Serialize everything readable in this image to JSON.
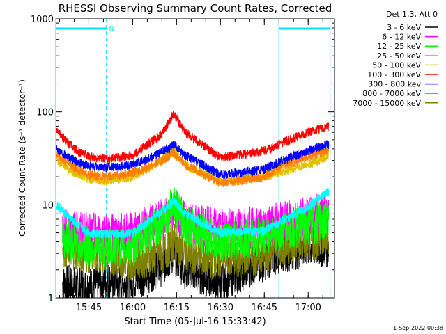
{
  "chart_data": {
    "type": "line",
    "title": "RHESSI Observing Summary Count Rates, Corrected",
    "xlabel": "Start Time (05-Jul-16 15:33:42)",
    "ylabel": "Corrected Count Rate (s⁻¹ detector⁻¹)",
    "yscale": "log",
    "ylim": [
      1,
      1000
    ],
    "xlim": [
      "15:33:42",
      "17:09:00"
    ],
    "x_tick_labels": [
      "15:45",
      "16:00",
      "16:15",
      "16:30",
      "16:45",
      "17:00"
    ],
    "y_tick_labels": [
      "1",
      "10",
      "100",
      "1000"
    ],
    "legend_header": "Det 1,3, Att 0",
    "legend_position": "right",
    "timestamp": "1-Sep-2022 00:38",
    "bars": [
      {
        "start": "15:33:42",
        "end": "15:51:00",
        "label": "N"
      },
      {
        "start": "16:50:00",
        "end": "17:07:30",
        "label": ""
      }
    ],
    "dashed_markers": [
      "15:51:00",
      "17:07:30"
    ],
    "solid_markers": [
      "15:33:42",
      "16:50:00"
    ],
    "series": [
      {
        "name": "3 - 6 keV",
        "color": "#000000",
        "times": [
          "15:36",
          "15:45",
          "15:51",
          "16:00",
          "16:10",
          "16:14",
          "16:18",
          "16:30",
          "16:45",
          "16:50",
          "17:00",
          "17:07"
        ],
        "values": [
          1.4,
          1.3,
          1.5,
          1.5,
          2.2,
          3.0,
          2.0,
          1.5,
          2.5,
          3.0,
          3.5,
          3.5
        ]
      },
      {
        "name": "6 - 12 keV",
        "color": "#ff00ff",
        "times": [
          "15:36",
          "15:45",
          "15:51",
          "16:00",
          "16:10",
          "16:14",
          "16:18",
          "16:30",
          "16:45",
          "16:50",
          "17:00",
          "17:07"
        ],
        "values": [
          5.5,
          5.0,
          5.0,
          5.0,
          7.0,
          9.5,
          6.5,
          5.5,
          6.0,
          6.5,
          7.5,
          8.5
        ]
      },
      {
        "name": "12 - 25 keV",
        "color": "#00ff00",
        "times": [
          "15:36",
          "15:45",
          "15:51",
          "16:00",
          "16:10",
          "16:14",
          "16:18",
          "16:30",
          "16:45",
          "16:50",
          "17:00",
          "17:07"
        ],
        "values": [
          4.5,
          3.5,
          3.5,
          3.5,
          6.5,
          10,
          6.0,
          4.0,
          4.5,
          5.0,
          6.0,
          7.0
        ]
      },
      {
        "name": "25 - 50 keV",
        "color": "#00ffff",
        "times": [
          "15:34",
          "15:40",
          "15:45",
          "15:51",
          "16:00",
          "16:10",
          "16:14",
          "16:18",
          "16:30",
          "16:45",
          "16:50",
          "17:00",
          "17:07"
        ],
        "values": [
          10,
          6.5,
          5.0,
          4.8,
          5.0,
          8.5,
          11,
          8.0,
          5.0,
          5.2,
          6.5,
          9.5,
          14
        ]
      },
      {
        "name": "50 - 100 keV",
        "color": "#e0c000",
        "times": [
          "15:34",
          "15:40",
          "15:45",
          "15:51",
          "16:00",
          "16:10",
          "16:14",
          "16:18",
          "16:30",
          "16:45",
          "16:50",
          "17:00",
          "17:07"
        ],
        "values": [
          30,
          22,
          19,
          18,
          20,
          30,
          40,
          26,
          18,
          20,
          22,
          27,
          33
        ]
      },
      {
        "name": "100 - 300 keV",
        "color": "#ff0000",
        "times": [
          "15:34",
          "15:40",
          "15:45",
          "15:51",
          "16:00",
          "16:10",
          "16:14",
          "16:18",
          "16:30",
          "16:45",
          "16:50",
          "17:00",
          "17:07"
        ],
        "values": [
          62,
          40,
          33,
          31,
          34,
          58,
          95,
          60,
          32,
          38,
          45,
          60,
          70
        ]
      },
      {
        "name": "300 - 800 kev",
        "color": "#0000ff",
        "times": [
          "15:34",
          "15:40",
          "15:45",
          "15:51",
          "16:00",
          "16:10",
          "16:14",
          "16:18",
          "16:30",
          "16:45",
          "16:50",
          "17:00",
          "17:07"
        ],
        "values": [
          40,
          30,
          26,
          25,
          27,
          37,
          44,
          34,
          21,
          24,
          29,
          38,
          45
        ]
      },
      {
        "name": "800 - 7000 keV",
        "color": "#ff8000",
        "times": [
          "15:34",
          "15:40",
          "15:45",
          "15:51",
          "16:00",
          "16:10",
          "16:14",
          "16:18",
          "16:30",
          "16:45",
          "16:50",
          "17:00",
          "17:07"
        ],
        "values": [
          35,
          25,
          21,
          20,
          22,
          30,
          36,
          27,
          17,
          20,
          25,
          33,
          39
        ]
      },
      {
        "name": "7000 - 15000 keV",
        "color": "#808000",
        "times": [
          "15:36",
          "15:45",
          "15:51",
          "16:00",
          "16:10",
          "16:14",
          "16:18",
          "16:30",
          "16:45",
          "16:50",
          "17:00",
          "17:07"
        ],
        "values": [
          3.5,
          3.0,
          3.0,
          2.5,
          3.0,
          4.0,
          3.0,
          2.5,
          3.0,
          3.5,
          4.0,
          4.5
        ]
      }
    ]
  }
}
